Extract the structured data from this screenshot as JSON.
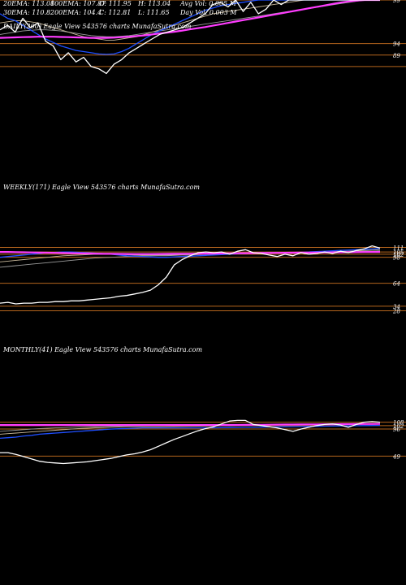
{
  "colors": {
    "background": "#000000",
    "price": "#ffffff",
    "ema_blue": "#1f4fff",
    "ema_magenta": "#ff3cff",
    "ema_gray": "#9a9a9a",
    "ema_tan": "#c8b89a",
    "ema_white": "#e8e8e8",
    "level_line": "#b5651d"
  },
  "header": {
    "row1": {
      "ema20": "20EMA: 113.08",
      "ema100": "100EMA: 107.87",
      "open": "O: 111.95",
      "high": "H: 113.04",
      "avg_vol": "Avg Vol: 0.005 M"
    },
    "row2": {
      "ema30": "30EMA: 110.8",
      "ema200": "200EMA: 104.4",
      "close": "C: 112.81",
      "low": "L: 111.65",
      "day_vol": "Day Vol: 0.003 M"
    }
  },
  "panels": {
    "daily": {
      "title": "DAILY(200) Eagle  View  543576  charts MunafaSutra.com",
      "tick_labels": [
        "99",
        "94",
        "89"
      ]
    },
    "weekly": {
      "title": "WEEKLY(171) Eagle  View  543576  charts MunafaSutra.com",
      "tick_labels": [
        "111",
        "105",
        "102",
        "98",
        "64",
        "34",
        "28"
      ]
    },
    "monthly": {
      "title": "MONTHLY(41) Eagle  View  543576  charts MunafaSutra.com",
      "tick_labels": [
        "108",
        "102",
        "96",
        "49"
      ]
    }
  },
  "chart_data": [
    {
      "type": "line",
      "title": "DAILY(200) Eagle  View  543576  charts MunafaSutra.com",
      "ylim": [
        84,
        118
      ],
      "levels": [
        118,
        99,
        94,
        89
      ],
      "x": [
        0,
        10,
        20,
        30,
        40,
        50,
        60,
        70,
        80,
        90,
        100,
        110,
        120,
        130,
        140,
        150,
        160,
        170,
        180,
        190,
        200,
        210,
        220,
        230,
        240,
        250,
        260,
        270,
        280,
        290,
        300,
        310,
        320,
        330,
        340,
        350,
        360,
        370,
        380,
        390,
        400,
        410,
        420,
        430,
        440,
        450,
        460,
        470,
        480,
        490,
        500
      ],
      "series": [
        {
          "role": "price",
          "values": [
            105,
            107,
            104,
            110,
            106,
            108,
            100,
            98,
            92,
            95,
            91,
            93,
            89,
            88,
            86,
            90,
            92,
            95,
            97,
            99,
            101,
            103,
            104,
            105,
            106,
            108,
            110,
            112,
            116,
            117,
            115,
            118,
            113,
            117,
            112,
            114,
            118,
            116,
            118,
            118,
            118,
            118,
            118,
            118,
            118,
            118,
            118,
            118,
            118,
            118,
            118
          ]
        },
        {
          "role": "ema_blue",
          "values": [
            112,
            110,
            109,
            107,
            105,
            103,
            101,
            99.5,
            98,
            97,
            96,
            95.5,
            95,
            94.5,
            94.3,
            94.5,
            95.5,
            97,
            99,
            101,
            103,
            104.5,
            106,
            107.5,
            109,
            110.5,
            112,
            113.5,
            114.5,
            115.5,
            116,
            116.5,
            117,
            117.5,
            118,
            118,
            118,
            118,
            118,
            118,
            118,
            118,
            118,
            118,
            118,
            118,
            118,
            118,
            118,
            118,
            118
          ]
        },
        {
          "role": "ema_tan",
          "values": [
            108,
            108.5,
            109,
            109,
            108.5,
            108,
            107,
            106,
            105,
            104,
            103,
            102,
            101.5,
            101,
            100.5,
            100.5,
            101,
            101.5,
            102,
            103,
            104,
            105,
            106,
            107,
            108,
            109,
            110,
            111,
            112,
            112.5,
            113,
            113.5,
            114,
            114.5,
            115,
            115.5,
            116,
            116.5,
            117,
            117.5,
            118,
            118,
            118,
            118,
            118,
            118,
            118,
            118,
            118,
            118,
            118
          ]
        },
        {
          "role": "ema_gray",
          "values": [
            103,
            103.5,
            104,
            104.5,
            104.8,
            105,
            105,
            104.8,
            104.5,
            104,
            103.5,
            103,
            102.5,
            102.2,
            102,
            102,
            102.2,
            102.5,
            103,
            103.5,
            104,
            104.5,
            105,
            105.5,
            106,
            106.5,
            107,
            107.5,
            108,
            108.5,
            109,
            109.5,
            110,
            110.5,
            111,
            111.5,
            112,
            112.5,
            113,
            113.5,
            114,
            114.5,
            115,
            115.5,
            116,
            116.5,
            117,
            117.5,
            118,
            118,
            118
          ]
        },
        {
          "role": "ema_magenta",
          "values": [
            101.5,
            101.6,
            101.7,
            101.8,
            101.9,
            102,
            102,
            102,
            101.9,
            101.8,
            101.7,
            101.6,
            101.5,
            101.5,
            101.5,
            101.6,
            101.8,
            102,
            102.3,
            102.6,
            103,
            103.4,
            103.8,
            104.2,
            104.7,
            105.2,
            105.7,
            106.2,
            106.8,
            107.4,
            108,
            108.6,
            109.2,
            109.8,
            110.4,
            111,
            111.6,
            112.2,
            112.8,
            113.4,
            114,
            114.6,
            115.2,
            115.8,
            116.4,
            117,
            117.4,
            117.8,
            118,
            118,
            118
          ]
        }
      ]
    },
    {
      "type": "line",
      "title": "WEEKLY(171) Eagle  View  543576  charts MunafaSutra.com",
      "ylim": [
        20,
        120
      ],
      "levels": [
        111,
        105,
        102,
        98,
        64,
        34,
        28
      ],
      "x": [
        0,
        10,
        20,
        30,
        40,
        50,
        60,
        70,
        80,
        90,
        100,
        110,
        120,
        130,
        140,
        150,
        160,
        170,
        180,
        190,
        200,
        210,
        220,
        230,
        240,
        250,
        260,
        270,
        280,
        290,
        300,
        310,
        320,
        330,
        340,
        350,
        360,
        370,
        380,
        390,
        400,
        410,
        420,
        430,
        440,
        450,
        460,
        470,
        480
      ],
      "series": [
        {
          "role": "price",
          "values": [
            38,
            39,
            37,
            38,
            38,
            39,
            39,
            40,
            40,
            41,
            41,
            42,
            43,
            44,
            45,
            47,
            48,
            50,
            52,
            55,
            62,
            72,
            88,
            95,
            100,
            104,
            105,
            104,
            105,
            102,
            106,
            108,
            104,
            103,
            101,
            99,
            102,
            100,
            104,
            102,
            103,
            105,
            103,
            106,
            104,
            107,
            109,
            113,
            110
          ]
        },
        {
          "role": "ema_blue",
          "values": [
            98,
            99,
            100,
            101,
            102,
            103,
            104,
            104.5,
            105,
            105,
            104.5,
            104,
            103.5,
            103,
            102,
            101,
            100,
            99.5,
            99,
            98.5,
            98,
            98,
            98.5,
            99,
            99.5,
            100,
            100.5,
            101,
            101.5,
            102,
            102.5,
            103,
            103.5,
            104,
            104,
            104,
            104,
            104,
            104.5,
            105,
            105.5,
            106,
            106.5,
            107,
            107.5,
            108,
            108.5,
            109,
            109.5
          ]
        },
        {
          "role": "ema_tan",
          "values": [
            92,
            93,
            94,
            95,
            96,
            97,
            98,
            99,
            100,
            100.5,
            101,
            101.5,
            102,
            102,
            102,
            102,
            101.5,
            101,
            101,
            101,
            101,
            101,
            101,
            101.5,
            102,
            102,
            102.5,
            103,
            103,
            103,
            103.5,
            104,
            104,
            104,
            104,
            104,
            104,
            104,
            104,
            104.5,
            105,
            105,
            105.5,
            106,
            106,
            106.5,
            107,
            107.5,
            108
          ]
        },
        {
          "role": "ema_gray",
          "values": [
            85,
            86,
            87,
            88,
            89,
            90,
            91,
            92,
            93,
            94,
            95,
            96,
            97,
            97.5,
            98,
            98.5,
            99,
            99.5,
            100,
            100,
            100,
            100,
            100.5,
            101,
            101,
            101.5,
            102,
            102,
            102.5,
            103,
            103,
            103,
            103.5,
            103.5,
            104,
            104,
            104,
            104,
            104,
            104,
            104.5,
            104.5,
            105,
            105,
            105.5,
            105.5,
            106,
            106,
            106.5
          ]
        },
        {
          "role": "ema_magenta",
          "values": [
            105,
            105,
            104.8,
            104.6,
            104.4,
            104.2,
            104,
            103.8,
            103.6,
            103.4,
            103.2,
            103,
            102.8,
            102.6,
            102.5,
            102.4,
            102.3,
            102.2,
            102.2,
            102.2,
            102.3,
            102.4,
            102.5,
            102.6,
            102.7,
            102.8,
            102.9,
            103,
            103.1,
            103.2,
            103.3,
            103.4,
            103.5,
            103.6,
            103.7,
            103.8,
            103.9,
            104,
            104.1,
            104.2,
            104.3,
            104.4,
            104.5,
            104.6,
            104.7,
            104.8,
            104.9,
            105,
            105
          ]
        }
      ]
    },
    {
      "type": "line",
      "title": "MONTHLY(41) Eagle  View  543576  charts MunafaSutra.com",
      "ylim": [
        0,
        130
      ],
      "levels": [
        108,
        102,
        96,
        49
      ],
      "x": [
        0,
        10,
        20,
        30,
        40,
        50,
        60,
        70,
        80,
        90,
        100,
        110,
        120,
        130,
        140,
        150,
        160,
        170,
        180,
        190,
        200,
        210,
        220,
        230,
        240,
        250,
        260,
        270,
        280,
        290,
        300,
        310,
        320,
        330,
        340,
        350,
        360,
        370,
        380,
        390,
        400,
        410,
        420,
        430,
        440,
        450,
        460,
        470,
        480
      ],
      "series": [
        {
          "role": "price",
          "values": [
            55,
            55,
            52,
            48,
            44,
            40,
            38,
            37,
            36,
            37,
            38,
            39,
            41,
            43,
            45,
            48,
            51,
            53,
            56,
            60,
            66,
            72,
            78,
            83,
            88,
            93,
            97,
            100,
            105,
            110,
            111,
            111,
            104,
            102,
            100,
            98,
            95,
            92,
            96,
            99,
            102,
            104,
            105,
            103,
            99,
            104,
            108,
            109,
            108
          ]
        },
        {
          "role": "ema_blue",
          "values": [
            80,
            81,
            82,
            84,
            85,
            87,
            88,
            89,
            90,
            91,
            92,
            93,
            94,
            95,
            96,
            96.5,
            97,
            97.5,
            98,
            98,
            98,
            98,
            98,
            98,
            98,
            98,
            98,
            98.2,
            98.4,
            98.6,
            98.8,
            99,
            99.2,
            99.4,
            99.6,
            99.8,
            100,
            100.2,
            100.4,
            100.6,
            100.8,
            101,
            101.2,
            101.4,
            101.6,
            101.8,
            102,
            102.2,
            102.4
          ]
        },
        {
          "role": "ema_tan",
          "values": [
            87,
            88,
            89,
            90,
            91,
            92,
            93,
            94,
            95,
            96,
            97,
            97.5,
            98,
            98.5,
            99,
            99.5,
            100,
            100,
            100,
            100,
            100,
            100.2,
            100.4,
            100.6,
            100.8,
            101,
            101.2,
            101.4,
            101.6,
            101.8,
            102,
            102.2,
            102.4,
            102.6,
            102.8,
            103,
            103.2,
            103.4,
            103.6,
            103.8,
            104,
            104.2,
            104.4,
            104.6,
            104.8,
            105,
            105.2,
            105.4,
            105.6
          ]
        },
        {
          "role": "ema_gray",
          "values": [
            92,
            93,
            94,
            95,
            96,
            97,
            97.5,
            98,
            98.5,
            99,
            99.5,
            100,
            100.3,
            100.6,
            101,
            101.2,
            101.4,
            101.6,
            101.8,
            102,
            102,
            102.1,
            102.2,
            102.3,
            102.4,
            102.5,
            102.6,
            102.7,
            102.8,
            102.9,
            103,
            103.1,
            103.2,
            103.3,
            103.4,
            103.5,
            103.6,
            103.7,
            103.8,
            103.9,
            104,
            104.1,
            104.2,
            104.3,
            104.4,
            104.5,
            104.6,
            104.7,
            104.8
          ]
        },
        {
          "role": "ema_magenta",
          "values": [
            103,
            103,
            103,
            103,
            103,
            103,
            103,
            103,
            103,
            103,
            103,
            103,
            103,
            103,
            103,
            103,
            103,
            103,
            103,
            103,
            103,
            103,
            103,
            103,
            103,
            103,
            103,
            103,
            103,
            103.1,
            103.2,
            103.3,
            103.4,
            103.5,
            103.6,
            103.7,
            103.8,
            103.9,
            104,
            104.1,
            104.2,
            104.3,
            104.4,
            104.5,
            104.6,
            104.7,
            104.8,
            104.9,
            105
          ]
        }
      ]
    }
  ]
}
